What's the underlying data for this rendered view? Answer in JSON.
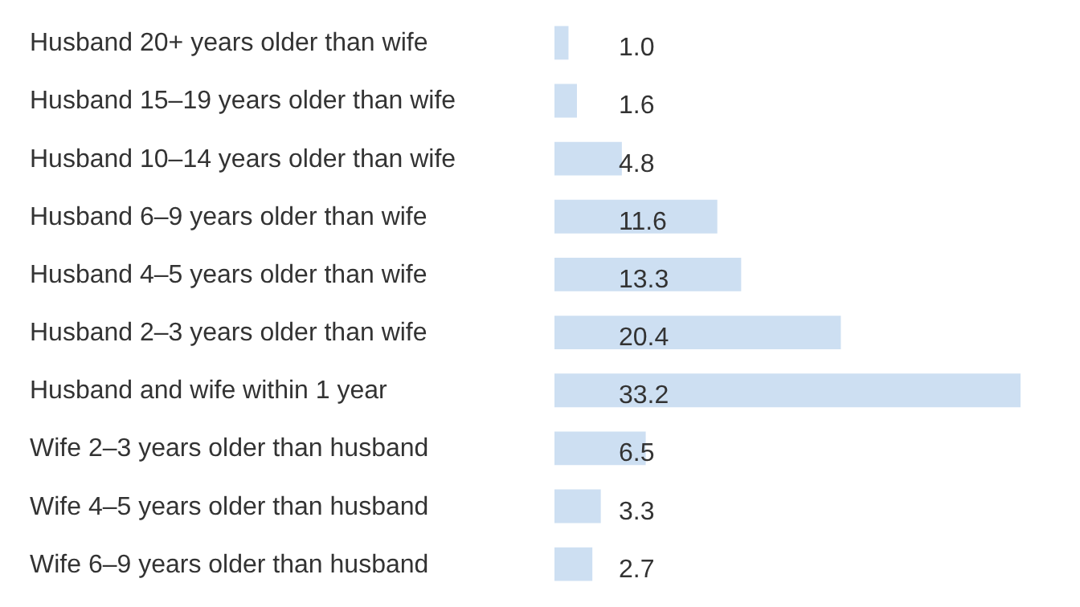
{
  "chart_data": {
    "type": "bar",
    "orientation": "horizontal",
    "color": "#cddff2",
    "grid": false,
    "value_labels": [
      "1.0",
      "1.6",
      "4.8",
      "11.6",
      "13.3",
      "20.4",
      "33.2",
      "6.5",
      "3.3",
      "2.7"
    ],
    "categories": [
      "Husband 20+ years older than wife",
      "Husband 15–19 years older than wife",
      "Husband 10–14 years older than wife",
      "Husband 6–9 years older than wife",
      "Husband 4–5 years older than wife",
      "Husband 2–3 years older than wife",
      "Husband and wife within 1 year",
      "Wife 2–3 years older than husband",
      "Wife 4–5 years older than husband",
      "Wife 6–9 years older than husband"
    ],
    "values": [
      1.0,
      1.6,
      4.8,
      11.6,
      13.3,
      20.4,
      33.2,
      6.5,
      3.3,
      2.7
    ]
  }
}
